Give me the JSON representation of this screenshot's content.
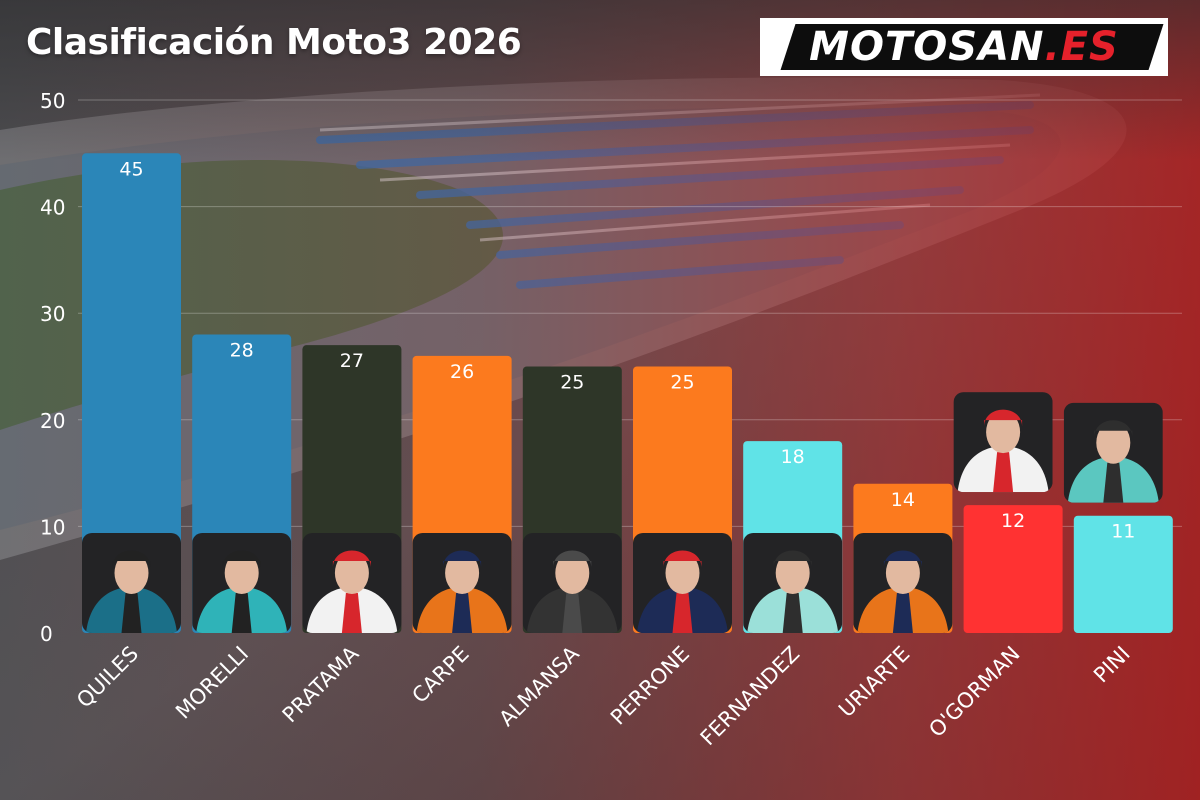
{
  "title": "Clasificación Moto3 2026",
  "logo": {
    "main": "MOTOSAN",
    "accent": ".ES"
  },
  "chart_data": {
    "type": "bar",
    "categories": [
      "QUILES",
      "MORELLI",
      "PRATAMA",
      "CARPE",
      "ALMANSA",
      "PERRONE",
      "FERNANDEZ",
      "URIARTE",
      "O'GORMAN",
      "PINI"
    ],
    "values": [
      45,
      28,
      27,
      26,
      25,
      25,
      18,
      14,
      12,
      11
    ],
    "colors": [
      "#2b86b8",
      "#2b86b8",
      "#2e3628",
      "#fc7a1e",
      "#2e3628",
      "#fc7a1e",
      "#60e3e7",
      "#fc7a1e",
      "#ff3232",
      "#60e3e7"
    ],
    "ylim": [
      0,
      50
    ],
    "yticks": [
      0,
      10,
      20,
      30,
      40,
      50
    ],
    "grid": true,
    "title": "Clasificación Moto3 2026",
    "xlabel": "",
    "ylabel": ""
  },
  "rider_photos": [
    {
      "rider": "QUILES",
      "kit": [
        "#1b6f88",
        "#222222"
      ]
    },
    {
      "rider": "MORELLI",
      "kit": [
        "#2fb3b8",
        "#222222"
      ]
    },
    {
      "rider": "PRATAMA",
      "kit": [
        "#f2f2f2",
        "#d7262c"
      ]
    },
    {
      "rider": "CARPE",
      "kit": [
        "#e8741a",
        "#1d2b56"
      ]
    },
    {
      "rider": "ALMANSA",
      "kit": [
        "#333333",
        "#4a4a4a"
      ]
    },
    {
      "rider": "PERRONE",
      "kit": [
        "#1d2b56",
        "#d7262c"
      ]
    },
    {
      "rider": "FERNANDEZ",
      "kit": [
        "#9be0d9",
        "#2e2e2e"
      ]
    },
    {
      "rider": "URIARTE",
      "kit": [
        "#e8741a",
        "#1d2b56"
      ]
    },
    {
      "rider": "O'GORMAN",
      "kit": [
        "#f2f2f2",
        "#d7262c"
      ]
    },
    {
      "rider": "PINI",
      "kit": [
        "#5bc7c0",
        "#2e2e2e"
      ]
    }
  ]
}
